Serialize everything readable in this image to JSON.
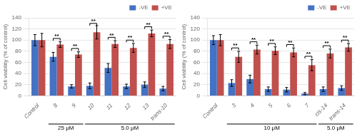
{
  "chart_data": [
    {
      "type": "bar",
      "categories": [
        "Control",
        "8",
        "9",
        "10",
        "11",
        "12",
        "13",
        "trans-10"
      ],
      "series": [
        {
          "name": "-VE",
          "color": "#4472C4",
          "values": [
            100,
            70,
            17,
            18,
            50,
            17,
            20,
            13
          ],
          "errors": [
            10,
            8,
            3,
            5,
            8,
            4,
            5,
            4
          ]
        },
        {
          "name": "+VE",
          "color": "#C0504D",
          "values": [
            100,
            92,
            74,
            114,
            93,
            86,
            112,
            93
          ],
          "errors": [
            12,
            5,
            5,
            12,
            6,
            8,
            6,
            8
          ]
        }
      ],
      "ylabel": "Cell viability (% of control)",
      "ylim": [
        0,
        140
      ],
      "yticks": [
        0,
        20,
        40,
        60,
        80,
        100,
        120,
        140
      ],
      "grid": true,
      "legend": "upper right",
      "group_labels": [
        {
          "label": "25 μM",
          "categories": [
            "8",
            "9"
          ]
        },
        {
          "label": "5.0 μM",
          "categories": [
            "10",
            "11",
            "12",
            "13",
            "trans-10"
          ]
        }
      ],
      "annotations": [
        {
          "text": "**",
          "category": "8"
        },
        {
          "text": "**",
          "category": "9"
        },
        {
          "text": "**",
          "category": "10"
        },
        {
          "text": "**",
          "category": "11"
        },
        {
          "text": "**",
          "category": "12"
        },
        {
          "text": "**",
          "category": "13"
        },
        {
          "text": "**",
          "category": "trans-10"
        }
      ]
    },
    {
      "type": "bar",
      "categories": [
        "Control",
        "3",
        "4",
        "5",
        "6",
        "7",
        "cis-14",
        "trans-14"
      ],
      "series": [
        {
          "name": "-VE",
          "color": "#4472C4",
          "values": [
            100,
            23,
            30,
            12,
            11,
            4,
            12,
            14
          ],
          "errors": [
            8,
            6,
            7,
            4,
            4,
            2,
            4,
            4
          ]
        },
        {
          "name": "+VE",
          "color": "#C0504D",
          "values": [
            100,
            70,
            83,
            81,
            78,
            55,
            76,
            87
          ],
          "errors": [
            10,
            10,
            8,
            7,
            8,
            10,
            8,
            7
          ]
        }
      ],
      "ylabel": "Cell viability (% of control)",
      "ylim": [
        0,
        140
      ],
      "yticks": [
        0,
        20,
        40,
        60,
        80,
        100,
        120,
        140
      ],
      "grid": true,
      "legend": "upper right",
      "group_labels": [
        {
          "label": "10 μM",
          "categories": [
            "3",
            "4",
            "5",
            "6",
            "7"
          ]
        },
        {
          "label": "5.0 μM",
          "categories": [
            "cis-14",
            "trans-14"
          ]
        }
      ],
      "annotations": [
        {
          "text": "**",
          "category": "3"
        },
        {
          "text": "**",
          "category": "4"
        },
        {
          "text": "**",
          "category": "5"
        },
        {
          "text": "**",
          "category": "6"
        },
        {
          "text": "**",
          "category": "7"
        },
        {
          "text": "**",
          "category": "cis-14"
        },
        {
          "text": "**",
          "category": "trans-14"
        }
      ]
    }
  ]
}
